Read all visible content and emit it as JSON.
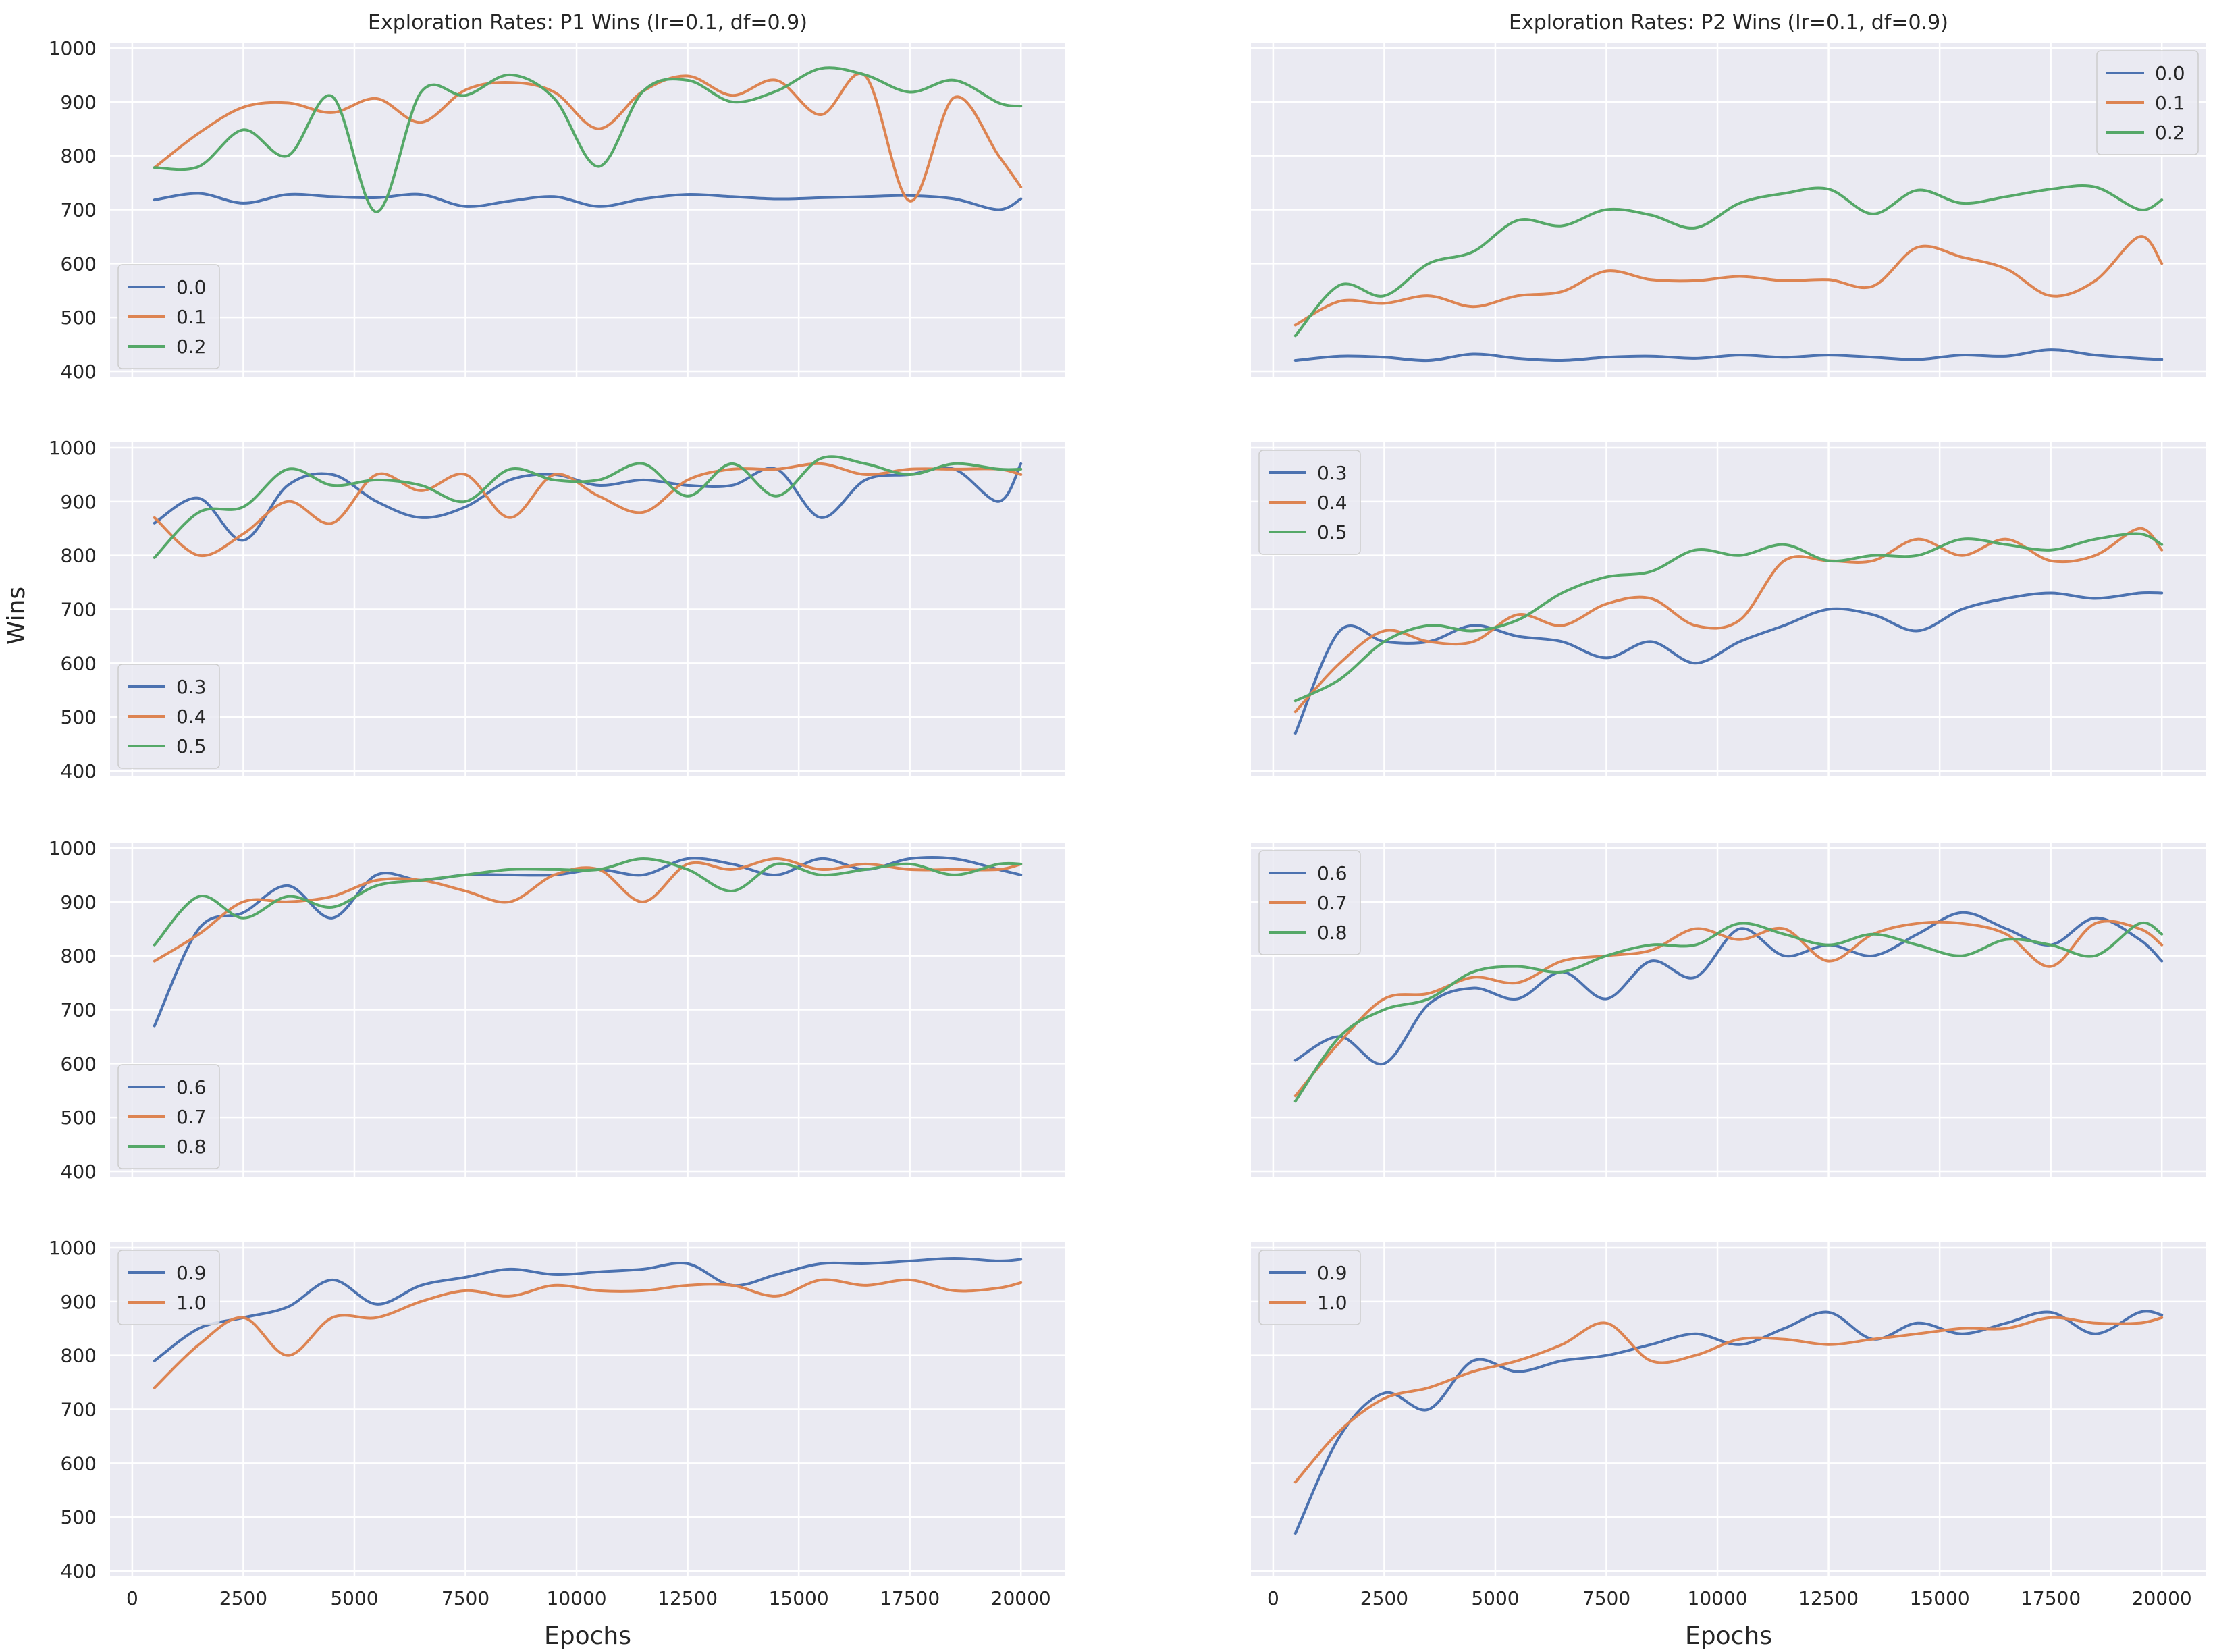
{
  "figure": {
    "ylabel": "Wins",
    "xlabel": "Epochs",
    "colors": {
      "blue": "#4c72b0",
      "orange": "#dd8452",
      "green": "#55a868",
      "panel_bg": "#eaeaf2",
      "grid": "#ffffff"
    },
    "titles": [
      "Exploration Rates: P1 Wins (lr=0.1, df=0.9)",
      "Exploration Rates: P2 Wins (lr=0.1, df=0.9)"
    ]
  },
  "chart_data": [
    {
      "type": "line",
      "player": "P1",
      "title": "Exploration Rates: P1 Wins (lr=0.1, df=0.9)",
      "xlabel": "",
      "ylabel": "Wins",
      "xlim": [
        -500,
        21000
      ],
      "ylim": [
        390,
        1010
      ],
      "yticks": [
        400,
        500,
        600,
        700,
        800,
        900,
        1000
      ],
      "grid": true,
      "legend": "lower-left",
      "x": [
        500,
        1500,
        2500,
        3500,
        4500,
        5500,
        6500,
        7500,
        8500,
        9500,
        10500,
        11500,
        12500,
        13500,
        14500,
        15500,
        16500,
        17500,
        18500,
        19500,
        20000
      ],
      "series": [
        {
          "name": "0.0",
          "color": "#4c72b0",
          "values": [
            718,
            730,
            712,
            728,
            724,
            722,
            728,
            706,
            716,
            724,
            706,
            720,
            728,
            724,
            720,
            722,
            724,
            726,
            720,
            700,
            720
          ]
        },
        {
          "name": "0.1",
          "color": "#dd8452",
          "values": [
            778,
            842,
            890,
            898,
            880,
            906,
            862,
            922,
            936,
            918,
            850,
            920,
            948,
            912,
            940,
            876,
            948,
            716,
            908,
            800,
            742
          ]
        },
        {
          "name": "0.2",
          "color": "#55a868",
          "values": [
            778,
            780,
            848,
            800,
            910,
            696,
            918,
            912,
            950,
            906,
            780,
            920,
            940,
            900,
            920,
            962,
            950,
            918,
            940,
            898,
            892
          ]
        }
      ]
    },
    {
      "type": "line",
      "player": "P2",
      "title": "Exploration Rates: P2 Wins (lr=0.1, df=0.9)",
      "xlabel": "",
      "ylabel": "",
      "xlim": [
        -500,
        21000
      ],
      "ylim": [
        390,
        1010
      ],
      "yticks": [
        400,
        500,
        600,
        700,
        800,
        900,
        1000
      ],
      "grid": true,
      "legend": "top-right",
      "x": [
        500,
        1500,
        2500,
        3500,
        4500,
        5500,
        6500,
        7500,
        8500,
        9500,
        10500,
        11500,
        12500,
        13500,
        14500,
        15500,
        16500,
        17500,
        18500,
        19500,
        20000
      ],
      "series": [
        {
          "name": "0.0",
          "color": "#4c72b0",
          "values": [
            420,
            428,
            426,
            420,
            432,
            424,
            420,
            426,
            428,
            424,
            430,
            426,
            430,
            426,
            422,
            430,
            428,
            440,
            430,
            424,
            422
          ]
        },
        {
          "name": "0.1",
          "color": "#dd8452",
          "values": [
            486,
            530,
            526,
            540,
            520,
            540,
            548,
            586,
            570,
            568,
            576,
            568,
            570,
            558,
            630,
            612,
            590,
            540,
            568,
            650,
            600
          ]
        },
        {
          "name": "0.2",
          "color": "#55a868",
          "values": [
            466,
            560,
            540,
            600,
            622,
            680,
            670,
            700,
            690,
            666,
            712,
            730,
            738,
            692,
            736,
            712,
            724,
            738,
            742,
            700,
            718
          ]
        }
      ]
    },
    {
      "type": "line",
      "player": "P1",
      "title": "",
      "xlabel": "",
      "ylabel": "Wins",
      "xlim": [
        -500,
        21000
      ],
      "ylim": [
        390,
        1010
      ],
      "yticks": [
        400,
        500,
        600,
        700,
        800,
        900,
        1000
      ],
      "grid": true,
      "legend": "lower-left",
      "x": [
        500,
        1500,
        2500,
        3500,
        4500,
        5500,
        6500,
        7500,
        8500,
        9500,
        10500,
        11500,
        12500,
        13500,
        14500,
        15500,
        16500,
        17500,
        18500,
        19500,
        20000
      ],
      "series": [
        {
          "name": "0.3",
          "color": "#4c72b0",
          "values": [
            860,
            906,
            828,
            930,
            950,
            900,
            870,
            890,
            940,
            950,
            930,
            940,
            930,
            930,
            960,
            870,
            940,
            950,
            960,
            900,
            970
          ]
        },
        {
          "name": "0.4",
          "color": "#dd8452",
          "values": [
            870,
            800,
            840,
            900,
            860,
            950,
            920,
            950,
            870,
            950,
            910,
            880,
            940,
            960,
            960,
            970,
            950,
            960,
            960,
            960,
            950
          ]
        },
        {
          "name": "0.5",
          "color": "#55a868",
          "values": [
            796,
            880,
            890,
            960,
            930,
            940,
            930,
            900,
            960,
            940,
            940,
            970,
            910,
            970,
            910,
            980,
            970,
            950,
            970,
            960,
            960
          ]
        }
      ]
    },
    {
      "type": "line",
      "player": "P2",
      "title": "",
      "xlabel": "",
      "ylabel": "",
      "xlim": [
        -500,
        21000
      ],
      "ylim": [
        390,
        1010
      ],
      "yticks": [
        400,
        500,
        600,
        700,
        800,
        900,
        1000
      ],
      "grid": true,
      "legend": "top-left",
      "x": [
        500,
        1500,
        2500,
        3500,
        4500,
        5500,
        6500,
        7500,
        8500,
        9500,
        10500,
        11500,
        12500,
        13500,
        14500,
        15500,
        16500,
        17500,
        18500,
        19500,
        20000
      ],
      "series": [
        {
          "name": "0.3",
          "color": "#4c72b0",
          "values": [
            470,
            660,
            640,
            640,
            670,
            650,
            640,
            610,
            640,
            600,
            640,
            670,
            700,
            690,
            660,
            700,
            720,
            730,
            720,
            730,
            730
          ]
        },
        {
          "name": "0.4",
          "color": "#dd8452",
          "values": [
            510,
            600,
            660,
            640,
            640,
            690,
            670,
            710,
            720,
            670,
            680,
            790,
            790,
            790,
            830,
            800,
            830,
            790,
            800,
            850,
            810
          ]
        },
        {
          "name": "0.5",
          "color": "#55a868",
          "values": [
            530,
            570,
            640,
            670,
            660,
            680,
            730,
            760,
            770,
            810,
            800,
            820,
            790,
            800,
            800,
            830,
            820,
            810,
            830,
            840,
            820
          ]
        }
      ]
    },
    {
      "type": "line",
      "player": "P1",
      "title": "",
      "xlabel": "",
      "ylabel": "Wins",
      "xlim": [
        -500,
        21000
      ],
      "ylim": [
        390,
        1010
      ],
      "yticks": [
        400,
        500,
        600,
        700,
        800,
        900,
        1000
      ],
      "grid": true,
      "legend": "lower-left",
      "x": [
        500,
        1500,
        2500,
        3500,
        4500,
        5500,
        6500,
        7500,
        8500,
        9500,
        10500,
        11500,
        12500,
        13500,
        14500,
        15500,
        16500,
        17500,
        18500,
        19500,
        20000
      ],
      "series": [
        {
          "name": "0.6",
          "color": "#4c72b0",
          "values": [
            670,
            850,
            880,
            930,
            870,
            950,
            940,
            950,
            950,
            950,
            960,
            950,
            980,
            970,
            950,
            980,
            960,
            980,
            980,
            960,
            950
          ]
        },
        {
          "name": "0.7",
          "color": "#dd8452",
          "values": [
            790,
            840,
            900,
            900,
            910,
            940,
            940,
            920,
            900,
            950,
            960,
            900,
            970,
            960,
            980,
            960,
            970,
            960,
            960,
            960,
            970
          ]
        },
        {
          "name": "0.8",
          "color": "#55a868",
          "values": [
            820,
            910,
            870,
            910,
            890,
            930,
            940,
            950,
            960,
            960,
            960,
            980,
            960,
            920,
            970,
            950,
            960,
            970,
            950,
            970,
            970
          ]
        }
      ]
    },
    {
      "type": "line",
      "player": "P2",
      "title": "",
      "xlabel": "",
      "ylabel": "",
      "xlim": [
        -500,
        21000
      ],
      "ylim": [
        390,
        1010
      ],
      "yticks": [
        400,
        500,
        600,
        700,
        800,
        900,
        1000
      ],
      "grid": true,
      "legend": "top-left",
      "x": [
        500,
        1500,
        2500,
        3500,
        4500,
        5500,
        6500,
        7500,
        8500,
        9500,
        10500,
        11500,
        12500,
        13500,
        14500,
        15500,
        16500,
        17500,
        18500,
        19500,
        20000
      ],
      "series": [
        {
          "name": "0.6",
          "color": "#4c72b0",
          "values": [
            606,
            650,
            600,
            710,
            740,
            720,
            770,
            720,
            790,
            760,
            850,
            800,
            820,
            800,
            840,
            880,
            850,
            820,
            870,
            830,
            790
          ]
        },
        {
          "name": "0.7",
          "color": "#dd8452",
          "values": [
            540,
            640,
            720,
            730,
            760,
            750,
            790,
            800,
            810,
            850,
            830,
            850,
            790,
            840,
            860,
            860,
            840,
            780,
            860,
            850,
            820
          ]
        },
        {
          "name": "0.8",
          "color": "#55a868",
          "values": [
            530,
            650,
            700,
            720,
            770,
            780,
            770,
            800,
            820,
            820,
            860,
            840,
            820,
            840,
            820,
            800,
            830,
            820,
            800,
            860,
            840
          ]
        }
      ]
    },
    {
      "type": "line",
      "player": "P1",
      "title": "",
      "xlabel": "Epochs",
      "ylabel": "Wins",
      "xlim": [
        -500,
        21000
      ],
      "ylim": [
        390,
        1010
      ],
      "yticks": [
        400,
        500,
        600,
        700,
        800,
        900,
        1000
      ],
      "xticks": [
        0,
        2500,
        5000,
        7500,
        10000,
        12500,
        15000,
        17500,
        20000
      ],
      "grid": true,
      "legend": "top-left",
      "x": [
        500,
        1500,
        2500,
        3500,
        4500,
        5500,
        6500,
        7500,
        8500,
        9500,
        10500,
        11500,
        12500,
        13500,
        14500,
        15500,
        16500,
        17500,
        18500,
        19500,
        20000
      ],
      "series": [
        {
          "name": "0.9",
          "color": "#4c72b0",
          "values": [
            790,
            850,
            870,
            890,
            940,
            895,
            930,
            945,
            960,
            950,
            955,
            960,
            970,
            930,
            950,
            970,
            970,
            975,
            980,
            975,
            978
          ]
        },
        {
          "name": "1.0",
          "color": "#dd8452",
          "values": [
            740,
            820,
            870,
            800,
            870,
            870,
            900,
            920,
            910,
            930,
            920,
            920,
            930,
            930,
            910,
            940,
            930,
            940,
            920,
            925,
            935
          ]
        }
      ]
    },
    {
      "type": "line",
      "player": "P2",
      "title": "",
      "xlabel": "Epochs",
      "ylabel": "",
      "xlim": [
        -500,
        21000
      ],
      "ylim": [
        390,
        1010
      ],
      "yticks": [
        400,
        500,
        600,
        700,
        800,
        900,
        1000
      ],
      "xticks": [
        0,
        2500,
        5000,
        7500,
        10000,
        12500,
        15000,
        17500,
        20000
      ],
      "grid": true,
      "legend": "top-left",
      "x": [
        500,
        1500,
        2500,
        3500,
        4500,
        5500,
        6500,
        7500,
        8500,
        9500,
        10500,
        11500,
        12500,
        13500,
        14500,
        15500,
        16500,
        17500,
        18500,
        19500,
        20000
      ],
      "series": [
        {
          "name": "0.9",
          "color": "#4c72b0",
          "values": [
            470,
            650,
            730,
            700,
            790,
            770,
            790,
            800,
            820,
            840,
            820,
            850,
            880,
            830,
            860,
            840,
            860,
            880,
            840,
            880,
            875
          ]
        },
        {
          "name": "1.0",
          "color": "#dd8452",
          "values": [
            565,
            660,
            720,
            740,
            770,
            790,
            820,
            860,
            790,
            800,
            830,
            830,
            820,
            830,
            840,
            850,
            850,
            870,
            860,
            860,
            870
          ]
        }
      ]
    }
  ]
}
